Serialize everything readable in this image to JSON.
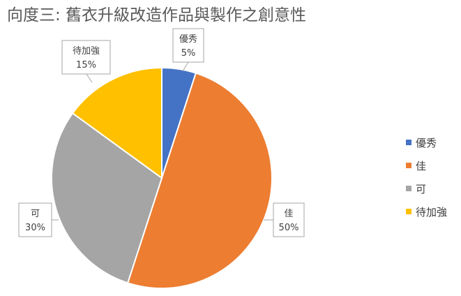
{
  "chart_data": {
    "type": "pie",
    "title": "向度三: 舊衣升級改造作品與製作之創意性",
    "categories": [
      "優秀",
      "佳",
      "可",
      "待加強"
    ],
    "values": [
      5,
      50,
      30,
      15
    ],
    "data_labels": [
      "5%",
      "50%",
      "30%",
      "15%"
    ],
    "colors": [
      "#4472C4",
      "#ED7D31",
      "#A5A5A5",
      "#FFC000"
    ],
    "legend_position": "right",
    "start_angle": "12 o'clock",
    "direction": "clockwise"
  }
}
